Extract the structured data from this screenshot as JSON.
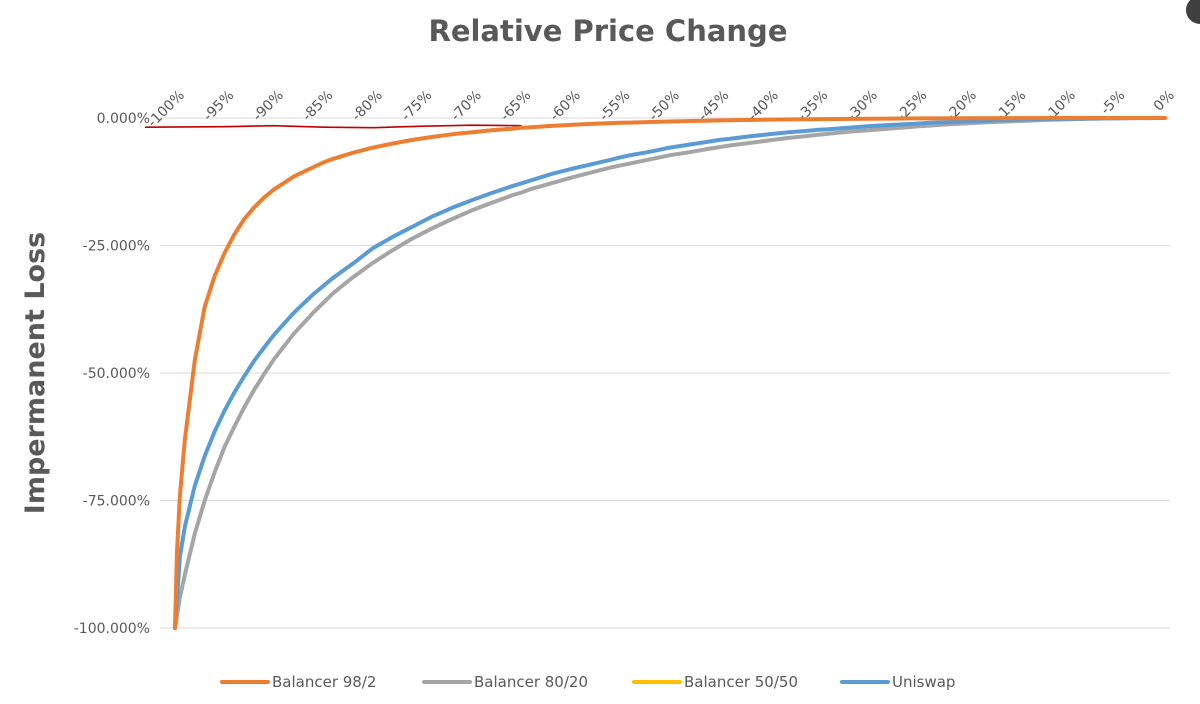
{
  "chart_data": {
    "type": "line",
    "title": "Relative Price Change",
    "xlabel": "",
    "ylabel": "Impermanent Loss",
    "x_tick_labels": [
      "-100%",
      "-95%",
      "-90%",
      "-85%",
      "-80%",
      "-75%",
      "-70%",
      "-65%",
      "-60%",
      "-55%",
      "-50%",
      "-45%",
      "-40%",
      "-35%",
      "-30%",
      "-25%",
      "-20%",
      "-15%",
      "-10%",
      "-5%",
      "0%"
    ],
    "y_tick_labels": [
      "0.000%",
      "-25.000%",
      "-50.000%",
      "-75.000%",
      "-100.000%"
    ],
    "y_ticks": [
      0,
      -25,
      -50,
      -75,
      -100
    ],
    "xlim": [
      -100,
      0
    ],
    "ylim": [
      -100,
      0
    ],
    "x_axis_position": "top",
    "grid": "horizontal",
    "legend_position": "bottom",
    "series": [
      {
        "name": "Balancer 98/2",
        "color": "#ed7d31",
        "x": [
          -100,
          -99.8,
          -99.5,
          -99,
          -98,
          -97,
          -96,
          -95,
          -94,
          -93,
          -92,
          -91,
          -90,
          -88,
          -86,
          -85,
          -84,
          -82,
          -80,
          -78,
          -76,
          -75,
          -74,
          -72,
          -70,
          -68,
          -66,
          -65,
          -64,
          -62,
          -60,
          -58,
          -56,
          -55,
          -54,
          -52,
          -50,
          -45,
          -40,
          -35,
          -30,
          -25,
          -20,
          -15,
          -10,
          -5,
          0
        ],
        "y": [
          -100,
          -85,
          -74,
          -63,
          -47.5,
          -37,
          -31,
          -26.5,
          -22.8,
          -19.8,
          -17.5,
          -15.6,
          -14,
          -11.5,
          -9.6,
          -8.7,
          -8.0,
          -6.8,
          -5.8,
          -5.0,
          -4.3,
          -4.0,
          -3.7,
          -3.2,
          -2.8,
          -2.4,
          -2.1,
          -1.9,
          -1.8,
          -1.55,
          -1.35,
          -1.15,
          -1.0,
          -0.95,
          -0.9,
          -0.78,
          -0.68,
          -0.48,
          -0.32,
          -0.21,
          -0.13,
          -0.08,
          -0.045,
          -0.02,
          -0.008,
          -0.002,
          0
        ]
      },
      {
        "name": "Balancer 80/20",
        "color": "#a5a5a5",
        "x": [
          -100,
          -99.5,
          -99,
          -98,
          -97,
          -96,
          -95,
          -94,
          -93,
          -92,
          -91,
          -90,
          -88,
          -86,
          -85,
          -84,
          -82,
          -80,
          -78,
          -76,
          -75,
          -74,
          -72,
          -70,
          -68,
          -66,
          -65,
          -64,
          -62,
          -60,
          -58,
          -56,
          -55,
          -54,
          -52,
          -50,
          -48,
          -46,
          -45,
          -44,
          -42,
          -40,
          -38,
          -36,
          -35,
          -34,
          -32,
          -30,
          -28,
          -26,
          -25,
          -24,
          -22,
          -20,
          -18,
          -16,
          -15,
          -14,
          -12,
          -10,
          -8,
          -6,
          -5,
          -4,
          -2,
          0
        ],
        "y": [
          -100,
          -94,
          -89.5,
          -81.5,
          -75,
          -69.5,
          -64.5,
          -60.5,
          -56.7,
          -53.3,
          -50.2,
          -47.3,
          -42.3,
          -38.1,
          -36.2,
          -34.3,
          -31.2,
          -28.4,
          -25.9,
          -23.6,
          -22.6,
          -21.6,
          -19.8,
          -18.1,
          -16.6,
          -15.2,
          -14.6,
          -13.9,
          -12.8,
          -11.7,
          -10.7,
          -9.7,
          -9.3,
          -8.9,
          -8.1,
          -7.3,
          -6.7,
          -6.0,
          -5.7,
          -5.4,
          -4.9,
          -4.4,
          -3.9,
          -3.5,
          -3.3,
          -3.1,
          -2.7,
          -2.4,
          -2.1,
          -1.8,
          -1.65,
          -1.5,
          -1.25,
          -1.05,
          -0.85,
          -0.68,
          -0.6,
          -0.52,
          -0.38,
          -0.27,
          -0.17,
          -0.1,
          -0.07,
          -0.045,
          -0.01,
          0
        ]
      },
      {
        "name": "Balancer 50/50",
        "color": "#ffc000",
        "x": [],
        "y": []
      },
      {
        "name": "Uniswap",
        "color": "#5b9bd5",
        "x": [
          -100,
          -99.5,
          -99,
          -98,
          -97,
          -96,
          -95,
          -94,
          -93,
          -92,
          -91,
          -90,
          -88,
          -86,
          -85,
          -84,
          -82,
          -80,
          -78,
          -76,
          -75,
          -74,
          -72,
          -70,
          -68,
          -66,
          -65,
          -64,
          -62,
          -60,
          -58,
          -56,
          -55,
          -54,
          -52,
          -50,
          -48,
          -46,
          -45,
          -44,
          -42,
          -40,
          -38,
          -36,
          -35,
          -34,
          -32,
          -30,
          -28,
          -26,
          -25,
          -24,
          -22,
          -20,
          -18,
          -16,
          -15,
          -14,
          -12,
          -10,
          -8,
          -6,
          -5,
          -4,
          -2,
          0
        ],
        "y": [
          -100,
          -86,
          -80.1,
          -72.1,
          -66.3,
          -61.5,
          -57.4,
          -53.8,
          -50.6,
          -47.6,
          -45.0,
          -42.5,
          -38.2,
          -34.5,
          -32.9,
          -31.3,
          -28.5,
          -25.5,
          -23.3,
          -21.3,
          -20.3,
          -19.3,
          -17.6,
          -16.1,
          -14.7,
          -13.4,
          -12.8,
          -12.2,
          -11.0,
          -10.0,
          -9.1,
          -8.2,
          -7.7,
          -7.3,
          -6.6,
          -5.8,
          -5.2,
          -4.6,
          -4.3,
          -4.1,
          -3.6,
          -3.2,
          -2.8,
          -2.5,
          -2.3,
          -2.2,
          -1.9,
          -1.6,
          -1.4,
          -1.2,
          -1.1,
          -0.97,
          -0.8,
          -0.62,
          -0.5,
          -0.38,
          -0.33,
          -0.28,
          -0.2,
          -0.14,
          -0.09,
          -0.05,
          -0.03,
          -0.02,
          -0.005,
          0
        ]
      }
    ],
    "reference_line": {
      "color": "#c00000",
      "x": [
        -100,
        -95,
        -90,
        -85,
        -80,
        -75,
        -70,
        -65
      ],
      "y": [
        -1.8,
        -1.7,
        -1.5,
        -1.8,
        -1.9,
        -1.6,
        -1.4,
        -1.5
      ]
    }
  }
}
